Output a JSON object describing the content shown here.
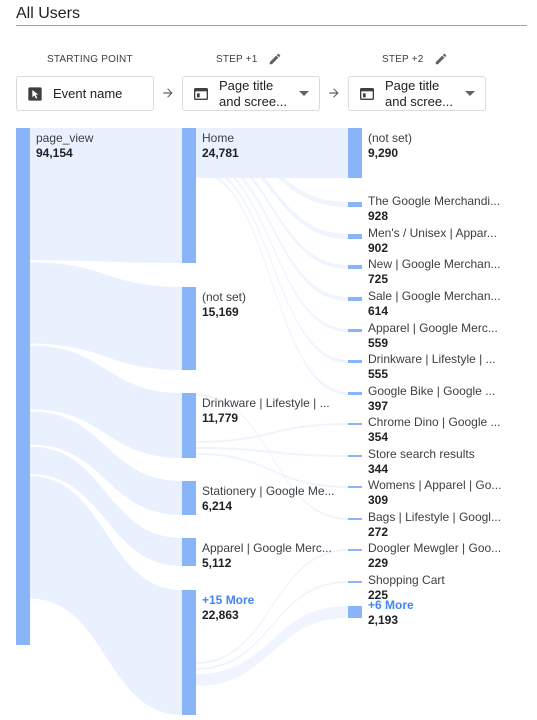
{
  "segment": {
    "title": "All Users"
  },
  "columns": [
    {
      "label": "STARTING POINT",
      "dimension": "Event name",
      "icon": "cursor-icon"
    },
    {
      "label": "STEP +1",
      "dimension_line1": "Page title",
      "dimension_line2": "and scree...",
      "icon": "page-icon"
    },
    {
      "label": "STEP +2",
      "dimension_line1": "Page title",
      "dimension_line2": "and scree...",
      "icon": "page-icon"
    }
  ],
  "start_nodes": [
    {
      "label": "page_view",
      "value": "94,154"
    }
  ],
  "step1_nodes": [
    {
      "label": "Home",
      "value": "24,781"
    },
    {
      "label": "(not set)",
      "value": "15,169"
    },
    {
      "label": "Drinkware | Lifestyle | ...",
      "value": "11,779"
    },
    {
      "label": "Stationery | Google Me...",
      "value": "6,214"
    },
    {
      "label": "Apparel | Google Merc...",
      "value": "5,112"
    },
    {
      "label": "+15 More",
      "value": "22,863",
      "more": true
    }
  ],
  "step2_nodes": [
    {
      "label": "(not set)",
      "value": "9,290"
    },
    {
      "label": "The Google Merchandi...",
      "value": "928"
    },
    {
      "label": "Men's / Unisex | Appar...",
      "value": "902"
    },
    {
      "label": "New | Google Merchan...",
      "value": "725"
    },
    {
      "label": "Sale | Google Merchan...",
      "value": "614"
    },
    {
      "label": "Apparel | Google Merc...",
      "value": "559"
    },
    {
      "label": "Drinkware | Lifestyle | ...",
      "value": "555"
    },
    {
      "label": "Google Bike | Google ...",
      "value": "397"
    },
    {
      "label": "Chrome Dino | Google ...",
      "value": "354"
    },
    {
      "label": "Store search results",
      "value": "344"
    },
    {
      "label": "Womens | Apparel | Go...",
      "value": "309"
    },
    {
      "label": "Bags | Lifestyle | Googl...",
      "value": "272"
    },
    {
      "label": "Doogler Mewgler | Goo...",
      "value": "229"
    },
    {
      "label": "Shopping Cart",
      "value": "225"
    },
    {
      "label": "+6 More",
      "value": "2,193",
      "more": true
    }
  ],
  "colors": {
    "node": "#8ab4f8",
    "flow": "#e8f0fe",
    "more_link": "#4285f4"
  }
}
